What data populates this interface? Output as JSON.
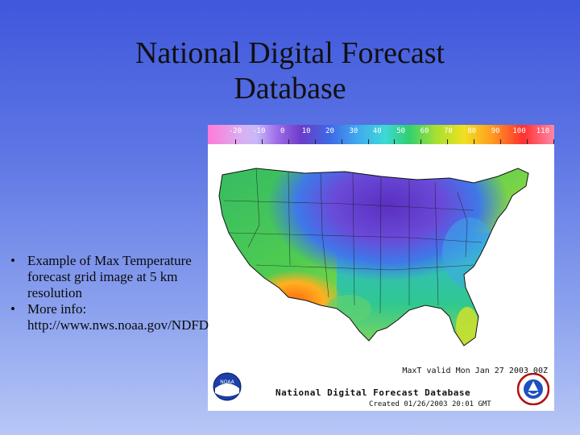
{
  "title": {
    "line1": "National Digital Forecast",
    "line2": "Database"
  },
  "bullets": [
    {
      "marker": "•",
      "text_lines": [
        "Example of Max Temperature",
        "forecast grid image at 5 km",
        "resolution"
      ]
    },
    {
      "marker": "•",
      "text_lines": [
        "More info:",
        "http://www.nws.noaa.gov/NDFD"
      ]
    }
  ],
  "map": {
    "scale_labels": [
      "-20",
      "-10",
      "0",
      "10",
      "20",
      "30",
      "40",
      "50",
      "60",
      "70",
      "80",
      "90",
      "100",
      "110"
    ],
    "valid_text": "MaxT  valid Mon Jan 27 2003 00Z",
    "product_text": "National Digital Forecast Database",
    "created_text": "Created 01/26/2003 20:01 GMT",
    "noaa_logo_text": "NOAA",
    "colors": {
      "cold": "#5a2fc0",
      "mild": "#30c070",
      "warm": "#f0a020",
      "hot": "#ff5020"
    }
  }
}
